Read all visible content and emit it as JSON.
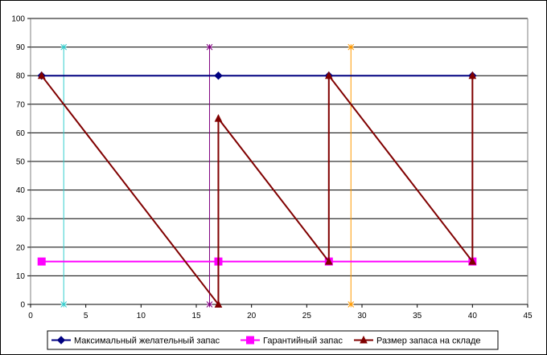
{
  "chart_data": {
    "type": "line",
    "title": "",
    "xlabel": "",
    "ylabel": "",
    "xlim": [
      0,
      45
    ],
    "ylim": [
      0,
      100
    ],
    "x_ticks": [
      0,
      5,
      10,
      15,
      20,
      25,
      30,
      35,
      40,
      45
    ],
    "y_ticks": [
      0,
      10,
      20,
      30,
      40,
      50,
      60,
      70,
      80,
      90,
      100
    ],
    "grid": "horizontal",
    "legend_position": "bottom",
    "series": [
      {
        "name": "Максимальный желательный запас",
        "color": "#000080",
        "marker": "diamond",
        "points": [
          [
            1,
            80
          ],
          [
            17,
            80
          ],
          [
            27,
            80
          ],
          [
            40,
            80
          ]
        ]
      },
      {
        "name": "Гарантийный запас",
        "color": "#ff00ff",
        "marker": "square",
        "points": [
          [
            1,
            15
          ],
          [
            17,
            15
          ],
          [
            27,
            15
          ],
          [
            40,
            15
          ]
        ]
      },
      {
        "name": "Размер запаса на складе",
        "color": "#800000",
        "marker": "triangle",
        "points": [
          [
            1,
            80
          ],
          [
            17,
            0
          ],
          [
            17,
            65
          ],
          [
            27,
            15
          ],
          [
            27,
            80
          ],
          [
            40,
            15
          ],
          [
            40,
            80
          ]
        ]
      }
    ],
    "vertical_markers": [
      {
        "x": 3,
        "y": [
          0,
          90
        ],
        "color": "#33cccc"
      },
      {
        "x": 16.2,
        "y": [
          0,
          90
        ],
        "color": "#800080"
      },
      {
        "x": 29,
        "y": [
          0,
          90
        ],
        "color": "#ff9900"
      }
    ]
  }
}
